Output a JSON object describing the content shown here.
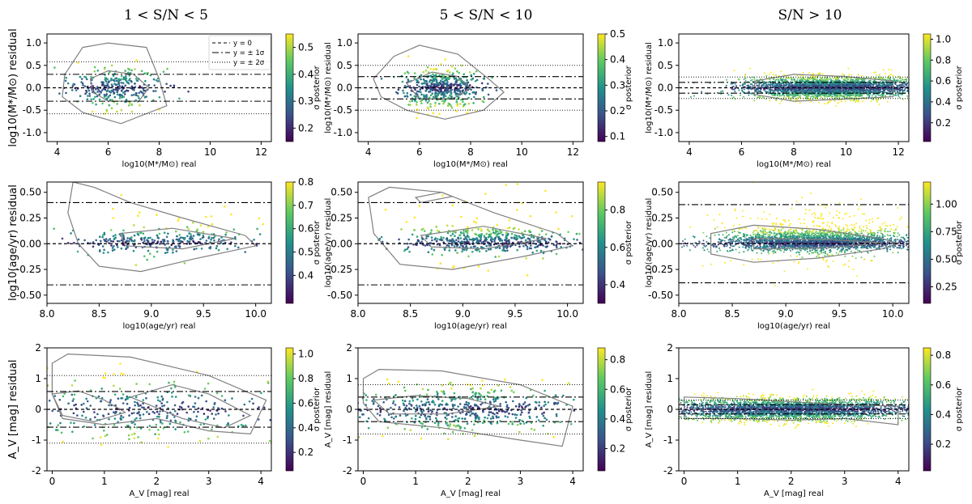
{
  "figure": {
    "column_titles": [
      "1 < S/N < 5",
      "5 < S/N < 10",
      "S/N > 10"
    ],
    "colorbar_label": "σ posterior",
    "legend": [
      {
        "label": "y = 0",
        "style": "dashed"
      },
      {
        "label": "y = ± 1σ",
        "style": "dashdot"
      },
      {
        "label": "y = ± 2σ",
        "style": "dotted"
      }
    ],
    "colormap": [
      "#440154",
      "#3b528b",
      "#21918c",
      "#5ec962",
      "#fde725"
    ],
    "contour_color": "#808080"
  },
  "chart_data": [
    {
      "type": "scatter",
      "row": 0,
      "col": 0,
      "xlabel": "log10(M*/M⊙) real",
      "ylabel": "log10(M*/M⊙) residual",
      "xlim": [
        3.6,
        12.4
      ],
      "ylim": [
        -1.2,
        1.2
      ],
      "xticks": [
        4,
        6,
        8,
        10,
        12
      ],
      "yticks": [
        -1.0,
        -0.5,
        0.0,
        0.5,
        1.0
      ],
      "hlines": {
        "zero": 0,
        "sigma1": 0.3,
        "sigma2": 0.58
      },
      "n_points": 300,
      "x_center": 6.2,
      "x_spread": 0.9,
      "y_spread": 0.22,
      "cbar_range": [
        0.15,
        0.55
      ],
      "cbar_ticks": [
        0.2,
        0.3,
        0.4,
        0.5
      ],
      "contours": [
        [
          [
            4.3,
            0.3
          ],
          [
            5.0,
            0.9
          ],
          [
            6.0,
            1.0
          ],
          [
            7.5,
            0.9
          ],
          [
            8.0,
            0.2
          ],
          [
            8.3,
            -0.4
          ],
          [
            6.5,
            -0.8
          ],
          [
            5.0,
            -0.55
          ],
          [
            4.2,
            -0.2
          ]
        ],
        [
          [
            5.3,
            0.2
          ],
          [
            6.0,
            0.38
          ],
          [
            7.0,
            0.3
          ],
          [
            7.6,
            0.0
          ],
          [
            7.2,
            -0.3
          ],
          [
            6.0,
            -0.3
          ],
          [
            5.4,
            -0.1
          ]
        ]
      ]
    },
    {
      "type": "scatter",
      "row": 0,
      "col": 1,
      "xlabel": "log10(M*/M⊙) real",
      "ylabel": "log10(M*/M⊙) residual",
      "xlim": [
        3.6,
        12.4
      ],
      "ylim": [
        -1.2,
        1.2
      ],
      "xticks": [
        4,
        6,
        8,
        10,
        12
      ],
      "yticks": [
        -1.0,
        -0.5,
        0.0,
        0.5,
        1.0
      ],
      "hlines": {
        "zero": 0,
        "sigma1": 0.25,
        "sigma2": 0.5
      },
      "n_points": 500,
      "x_center": 6.8,
      "x_spread": 0.8,
      "y_spread": 0.2,
      "cbar_range": [
        0.08,
        0.5
      ],
      "cbar_ticks": [
        0.1,
        0.2,
        0.3,
        0.4,
        0.5
      ],
      "contours": [
        [
          [
            4.2,
            0.2
          ],
          [
            5.0,
            0.7
          ],
          [
            6.0,
            0.95
          ],
          [
            7.5,
            0.75
          ],
          [
            8.7,
            0.2
          ],
          [
            9.3,
            -0.1
          ],
          [
            8.5,
            -0.5
          ],
          [
            7.0,
            -0.7
          ],
          [
            5.5,
            -0.5
          ],
          [
            4.5,
            -0.2
          ]
        ],
        [
          [
            5.5,
            0.1
          ],
          [
            6.5,
            0.35
          ],
          [
            7.5,
            0.25
          ],
          [
            8.0,
            0.0
          ],
          [
            7.3,
            -0.25
          ],
          [
            6.0,
            -0.25
          ]
        ]
      ]
    },
    {
      "type": "scatter",
      "row": 0,
      "col": 2,
      "xlabel": "log10(M*/M⊙) real",
      "ylabel": "log10(M*/M⊙) residual",
      "xlim": [
        3.6,
        12.4
      ],
      "ylim": [
        -1.2,
        1.2
      ],
      "xticks": [
        4,
        6,
        8,
        10,
        12
      ],
      "yticks": [
        -1.0,
        -0.5,
        0.0,
        0.5,
        1.0
      ],
      "hlines": {
        "zero": 0,
        "sigma1": 0.12,
        "sigma2": 0.24
      },
      "n_points": 3200,
      "x_center": 9.5,
      "x_spread": 1.6,
      "y_spread": 0.12,
      "cbar_range": [
        0.02,
        1.05
      ],
      "cbar_ticks": [
        0.2,
        0.4,
        0.6,
        0.8,
        1.0
      ],
      "contours": [
        [
          [
            6.5,
            0.15
          ],
          [
            8.0,
            0.3
          ],
          [
            10.0,
            0.25
          ],
          [
            11.8,
            0.15
          ],
          [
            11.8,
            -0.2
          ],
          [
            10.0,
            -0.25
          ],
          [
            8.0,
            -0.3
          ],
          [
            6.5,
            -0.15
          ]
        ]
      ]
    },
    {
      "type": "scatter",
      "row": 1,
      "col": 0,
      "xlabel": "log10(age/yr) real",
      "ylabel": "log10(age/yr) residual",
      "xlim": [
        8.0,
        10.15
      ],
      "ylim": [
        -0.58,
        0.6
      ],
      "xticks": [
        8.0,
        8.5,
        9.0,
        9.5,
        10.0
      ],
      "yticks": [
        -0.5,
        -0.25,
        0.0,
        0.25,
        0.5
      ],
      "hlines": {
        "zero": 0,
        "sigma1": 0.4
      },
      "n_points": 320,
      "x_center": 9.1,
      "x_spread": 0.4,
      "y_spread": 0.08,
      "cbar_range": [
        0.28,
        0.8
      ],
      "cbar_ticks": [
        0.4,
        0.5,
        0.6,
        0.7,
        0.8
      ],
      "contours": [
        [
          [
            8.25,
            0.6
          ],
          [
            8.45,
            0.55
          ],
          [
            8.8,
            0.4
          ],
          [
            9.3,
            0.25
          ],
          [
            9.9,
            0.08
          ],
          [
            10.0,
            -0.02
          ],
          [
            9.4,
            -0.15
          ],
          [
            8.9,
            -0.27
          ],
          [
            8.5,
            -0.22
          ],
          [
            8.3,
            0.0
          ],
          [
            8.2,
            0.3
          ]
        ],
        [
          [
            8.7,
            0.1
          ],
          [
            9.2,
            0.15
          ],
          [
            9.8,
            0.05
          ],
          [
            9.3,
            -0.05
          ],
          [
            8.75,
            -0.02
          ]
        ]
      ]
    },
    {
      "type": "scatter",
      "row": 1,
      "col": 1,
      "xlabel": "log10(age/yr) real",
      "ylabel": "log10(age/yr) residual",
      "xlim": [
        8.0,
        10.15
      ],
      "ylim": [
        -0.58,
        0.6
      ],
      "xticks": [
        8.0,
        8.5,
        9.0,
        9.5,
        10.0
      ],
      "yticks": [
        -0.5,
        -0.25,
        0.0,
        0.25,
        0.5
      ],
      "hlines": {
        "zero": 0,
        "sigma1": 0.4
      },
      "n_points": 520,
      "x_center": 9.2,
      "x_spread": 0.4,
      "y_spread": 0.07,
      "cbar_range": [
        0.3,
        0.95
      ],
      "cbar_ticks": [
        0.4,
        0.6,
        0.8
      ],
      "contours": [
        [
          [
            8.1,
            0.45
          ],
          [
            8.3,
            0.55
          ],
          [
            8.8,
            0.5
          ],
          [
            9.3,
            0.3
          ],
          [
            9.9,
            0.1
          ],
          [
            10.05,
            -0.02
          ],
          [
            9.6,
            -0.12
          ],
          [
            8.9,
            -0.25
          ],
          [
            8.4,
            -0.2
          ],
          [
            8.15,
            0.1
          ]
        ],
        [
          [
            8.6,
            0.08
          ],
          [
            9.2,
            0.17
          ],
          [
            9.8,
            0.05
          ],
          [
            9.2,
            -0.05
          ],
          [
            8.7,
            -0.03
          ]
        ],
        [
          [
            8.55,
            0.45
          ],
          [
            8.8,
            0.5
          ],
          [
            8.9,
            0.46
          ],
          [
            8.6,
            0.4
          ]
        ]
      ]
    },
    {
      "type": "scatter",
      "row": 1,
      "col": 2,
      "xlabel": "log10(age/yr) real",
      "ylabel": "log10(age/yr) residual",
      "xlim": [
        8.0,
        10.15
      ],
      "ylim": [
        -0.58,
        0.6
      ],
      "xticks": [
        8.0,
        8.5,
        9.0,
        9.5,
        10.0
      ],
      "yticks": [
        -0.5,
        -0.25,
        0.0,
        0.25,
        0.5
      ],
      "hlines": {
        "zero": 0,
        "sigma1": 0.38
      },
      "n_points": 2800,
      "x_center": 9.3,
      "x_spread": 0.45,
      "y_spread": 0.06,
      "cbar_range": [
        0.1,
        1.2
      ],
      "cbar_ticks": [
        0.25,
        0.5,
        0.75,
        1.0
      ],
      "contours": [
        [
          [
            8.3,
            0.1
          ],
          [
            8.7,
            0.18
          ],
          [
            9.3,
            0.14
          ],
          [
            9.9,
            0.05
          ],
          [
            10.05,
            0.0
          ],
          [
            9.9,
            -0.05
          ],
          [
            9.3,
            -0.14
          ],
          [
            8.7,
            -0.18
          ],
          [
            8.3,
            -0.1
          ]
        ],
        [
          [
            8.7,
            0.05
          ],
          [
            9.4,
            0.04
          ],
          [
            9.9,
            0.01
          ],
          [
            9.4,
            -0.04
          ],
          [
            8.7,
            -0.05
          ]
        ]
      ]
    },
    {
      "type": "scatter",
      "row": 2,
      "col": 0,
      "xlabel": "A_V [mag] real",
      "ylabel": "A_V [mag] residual",
      "xlim": [
        -0.1,
        4.2
      ],
      "ylim": [
        -2.0,
        2.0
      ],
      "xticks": [
        0,
        1,
        2,
        3,
        4
      ],
      "yticks": [
        -2,
        -1,
        0,
        1,
        2
      ],
      "hlines": {
        "zero": 0,
        "sigma1": 0.58,
        "sigma2": 1.1
      },
      "n_points": 330,
      "x_center": 1.8,
      "x_spread": 1.2,
      "y_spread": 0.45,
      "cbar_range": [
        0.05,
        1.05
      ],
      "cbar_ticks": [
        0.2,
        0.4,
        0.6,
        0.8,
        1.0
      ],
      "contours": [
        [
          [
            0.0,
            1.5
          ],
          [
            0.3,
            1.8
          ],
          [
            1.5,
            1.7
          ],
          [
            3.0,
            1.1
          ],
          [
            4.1,
            0.3
          ],
          [
            3.8,
            -0.8
          ],
          [
            3.0,
            -0.7
          ],
          [
            2.0,
            -0.3
          ],
          [
            1.0,
            -0.5
          ],
          [
            0.2,
            -0.3
          ],
          [
            0.0,
            0.5
          ]
        ],
        [
          [
            0.0,
            0.5
          ],
          [
            0.5,
            0.6
          ],
          [
            1.0,
            0.3
          ],
          [
            1.4,
            -0.1
          ],
          [
            0.8,
            -0.4
          ],
          [
            0.2,
            -0.2
          ]
        ],
        [
          [
            1.5,
            0.4
          ],
          [
            2.3,
            0.8
          ],
          [
            3.0,
            0.5
          ],
          [
            3.8,
            -0.2
          ],
          [
            3.3,
            -0.6
          ],
          [
            2.5,
            -0.3
          ]
        ]
      ]
    },
    {
      "type": "scatter",
      "row": 2,
      "col": 1,
      "xlabel": "A_V [mag] real",
      "ylabel": "A_V [mag] residual",
      "xlim": [
        -0.1,
        4.2
      ],
      "ylim": [
        -2.0,
        2.0
      ],
      "xticks": [
        0,
        1,
        2,
        3,
        4
      ],
      "yticks": [
        -2,
        -1,
        0,
        1,
        2
      ],
      "hlines": {
        "zero": 0,
        "sigma1": 0.4,
        "sigma2": 0.8
      },
      "n_points": 520,
      "x_center": 1.8,
      "x_spread": 1.1,
      "y_spread": 0.35,
      "cbar_range": [
        0.05,
        0.88
      ],
      "cbar_ticks": [
        0.2,
        0.4,
        0.6,
        0.8
      ],
      "contours": [
        [
          [
            0.0,
            1.0
          ],
          [
            0.3,
            1.3
          ],
          [
            1.5,
            1.25
          ],
          [
            3.0,
            0.8
          ],
          [
            4.0,
            0.1
          ],
          [
            3.8,
            -1.2
          ],
          [
            3.0,
            -1.0
          ],
          [
            1.5,
            -0.6
          ],
          [
            0.3,
            -0.4
          ],
          [
            0.0,
            0.2
          ]
        ],
        [
          [
            0.2,
            0.3
          ],
          [
            1.0,
            0.45
          ],
          [
            2.0,
            0.35
          ],
          [
            2.6,
            0.1
          ],
          [
            1.6,
            -0.15
          ],
          [
            0.5,
            -0.15
          ]
        ]
      ]
    },
    {
      "type": "scatter",
      "row": 2,
      "col": 2,
      "xlabel": "A_V [mag] real",
      "ylabel": "A_V [mag] residual",
      "xlim": [
        -0.1,
        4.2
      ],
      "ylim": [
        -2.0,
        2.0
      ],
      "xticks": [
        0,
        1,
        2,
        3,
        4
      ],
      "yticks": [
        -2,
        -1,
        0,
        1,
        2
      ],
      "hlines": {
        "zero": 0,
        "sigma1": 0.15,
        "sigma2": 0.3
      },
      "n_points": 3200,
      "x_center": 2.0,
      "x_spread": 1.1,
      "y_spread": 0.18,
      "cbar_range": [
        0.02,
        0.85
      ],
      "cbar_ticks": [
        0.2,
        0.4,
        0.6,
        0.8
      ],
      "contours": [
        [
          [
            0.0,
            0.4
          ],
          [
            1.0,
            0.35
          ],
          [
            2.0,
            0.25
          ],
          [
            3.0,
            0.15
          ],
          [
            4.0,
            0.1
          ],
          [
            4.0,
            -0.5
          ],
          [
            3.0,
            -0.3
          ],
          [
            2.0,
            -0.35
          ],
          [
            1.0,
            -0.3
          ],
          [
            0.0,
            -0.3
          ]
        ]
      ]
    }
  ]
}
